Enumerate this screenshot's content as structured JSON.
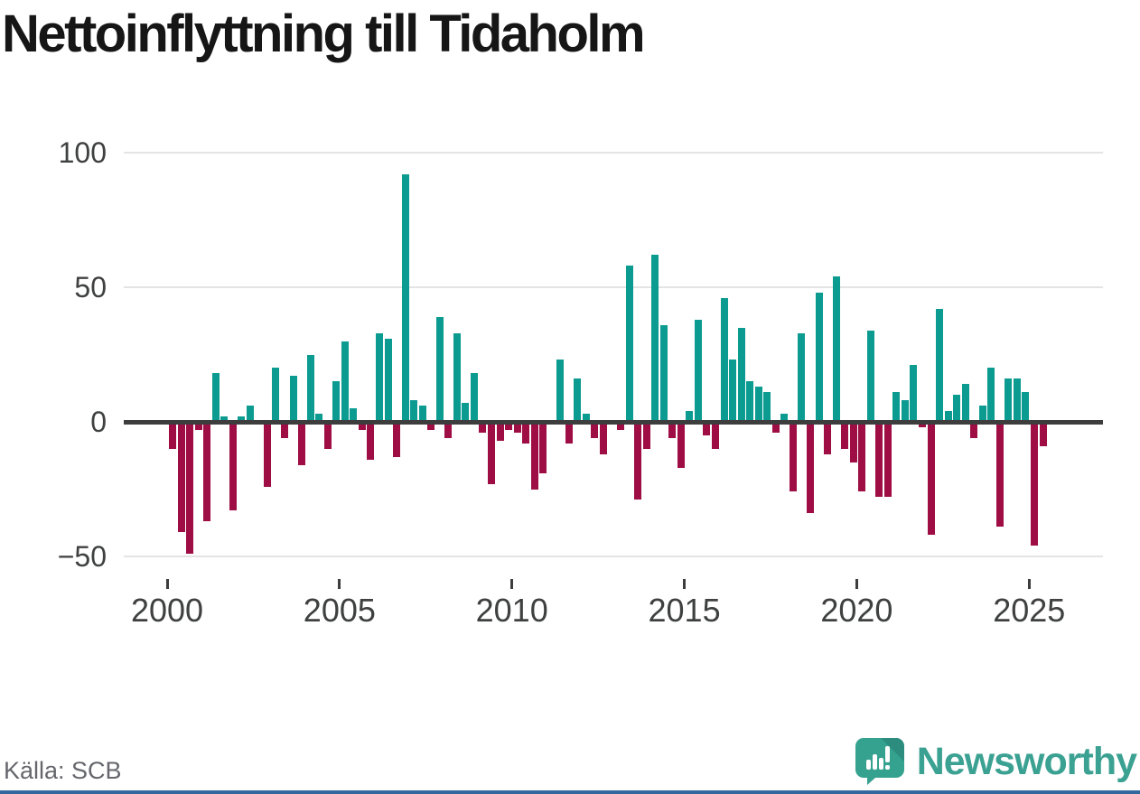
{
  "source": "Källa: SCB",
  "logo_text": "Newsworthy",
  "colors": {
    "positive": "#0b9b91",
    "negative": "#9e0e44",
    "axis": "#3d3d3d",
    "grid": "#e4e4e4",
    "tick_label": "#3f4040",
    "title": "#161616",
    "source_text": "#66676d",
    "logo_teal": "#3ba192",
    "logo_bubble": "#35a18f",
    "logo_fold": "#2c8d7f",
    "bottom_bar": "#33689f"
  },
  "chart_data": {
    "type": "bar",
    "title": "Nettoinflyttning till Tidaholm",
    "xlabel": "",
    "ylabel": "",
    "frequency": "quarterly",
    "start_period": "2000 Q1",
    "end_period": "2025 Q2",
    "x_tick_labels": [
      "2000",
      "2005",
      "2010",
      "2015",
      "2020",
      "2025"
    ],
    "x_tick_years": [
      2000,
      2005,
      2010,
      2015,
      2020,
      2025
    ],
    "y_ticks": [
      100,
      50,
      0,
      -50
    ],
    "y_tick_labels": [
      "100",
      "50",
      "0",
      "−50"
    ],
    "ylim": [
      -55,
      103
    ],
    "grid": "horizontal",
    "legend": "none",
    "values": [
      -10,
      -41,
      -49,
      -3,
      -37,
      18,
      2,
      -33,
      2,
      6,
      0,
      -24,
      20,
      -6,
      17,
      -16,
      25,
      3,
      -10,
      15,
      30,
      5,
      -3,
      -14,
      33,
      31,
      -13,
      92,
      8,
      6,
      -3,
      39,
      -6,
      33,
      7,
      18,
      -4,
      -23,
      -7,
      -3,
      -4,
      -8,
      -25,
      -19,
      0,
      23,
      -8,
      16,
      3,
      -6,
      -12,
      0,
      -3,
      58,
      -29,
      -10,
      62,
      36,
      -6,
      -17,
      4,
      38,
      -5,
      -10,
      46,
      23,
      35,
      15,
      13,
      11,
      -4,
      3,
      -26,
      33,
      -34,
      48,
      -12,
      54,
      -10,
      -15,
      -26,
      34,
      -28,
      -28,
      11,
      8,
      21,
      -2,
      -42,
      42,
      4,
      10,
      14,
      -6,
      6,
      20,
      -39,
      16,
      16,
      11,
      -46,
      -9
    ]
  }
}
